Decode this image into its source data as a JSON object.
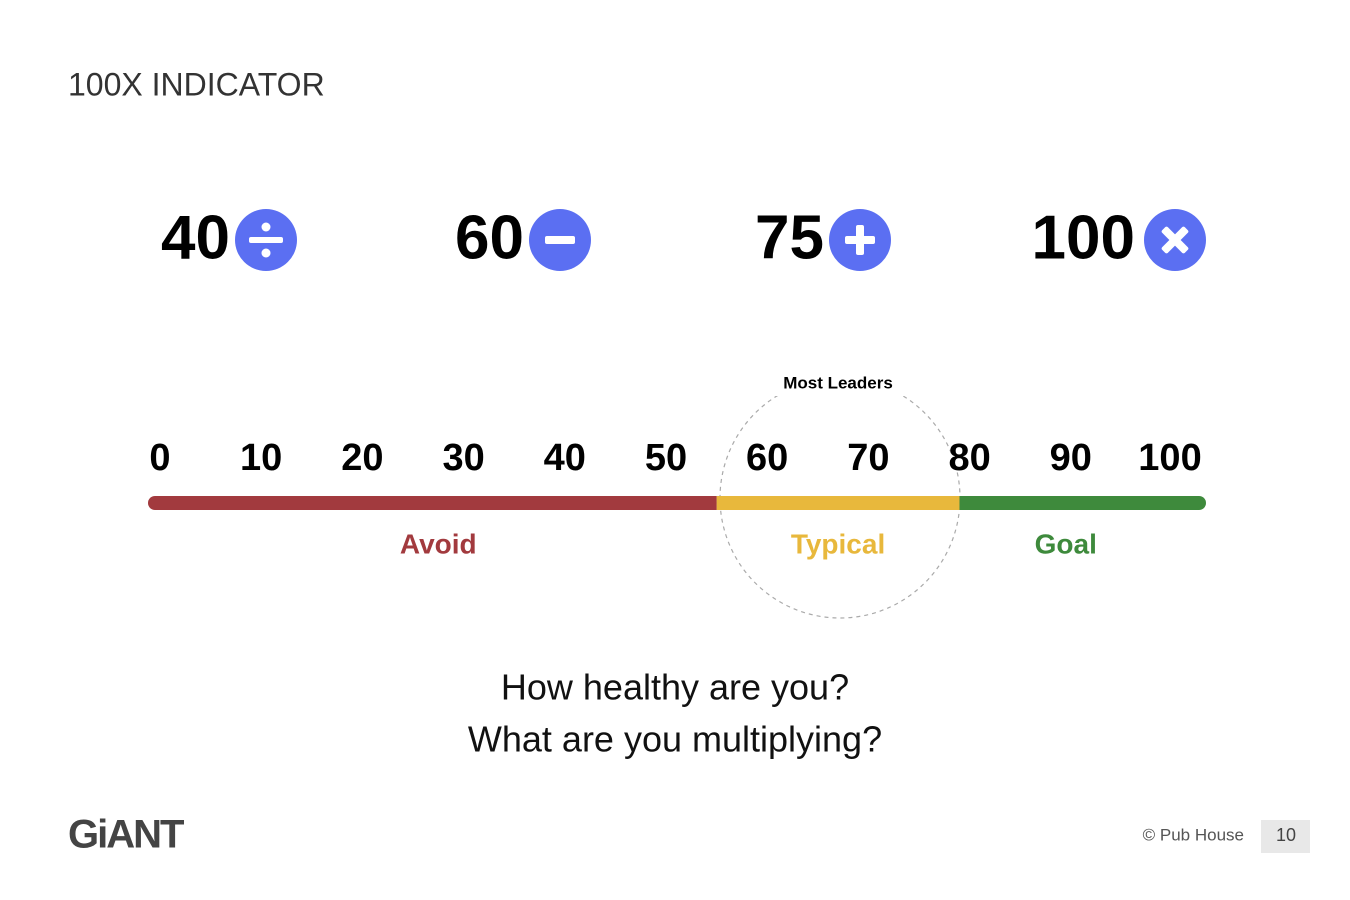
{
  "header": {
    "title": "100X INDICATOR"
  },
  "indicators": [
    {
      "value": "40"
    },
    {
      "value": "60"
    },
    {
      "value": "75"
    },
    {
      "value": "100"
    }
  ],
  "scale": {
    "ticks": [
      0,
      10,
      20,
      30,
      40,
      50,
      60,
      70,
      80,
      90,
      100
    ],
    "segments": [
      {
        "label": "Avoid",
        "color": "#a23a3e",
        "range": [
          0,
          55
        ]
      },
      {
        "label": "Typical",
        "color": "#e8b83c",
        "range": [
          55,
          79
        ]
      },
      {
        "label": "Goal",
        "color": "#3e8a3c",
        "range": [
          79,
          100
        ]
      }
    ],
    "highlight": "Most Leaders"
  },
  "questions": [
    "How healthy are you?",
    "What are you multiplying?"
  ],
  "footer": {
    "logo": "GiANT",
    "copyright": "© Pub House",
    "page": "10"
  }
}
